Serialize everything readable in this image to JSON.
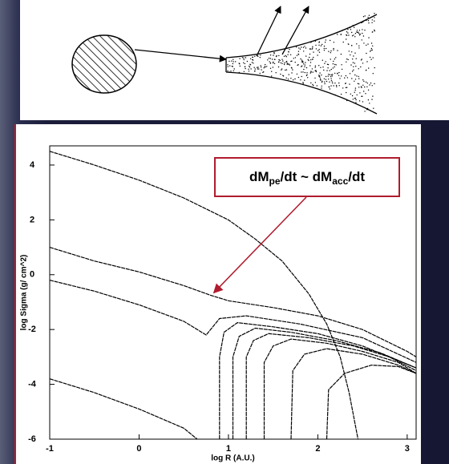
{
  "chart_data": {
    "type": "line",
    "x_label": "log R (A.U.)",
    "y_label": "log Sigma  (g/ cm^2)",
    "xlim": [
      -1,
      3.1
    ],
    "ylim": [
      -6,
      4.7
    ],
    "xticks": [
      -1,
      0,
      1,
      2,
      3
    ],
    "yticks": [
      -6,
      -4,
      -2,
      0,
      2,
      4
    ],
    "annotation": [
      "dM",
      "pe",
      "/dt ~ dM",
      "acc",
      "/dt"
    ],
    "annotation_point": [
      0.8,
      -0.75
    ],
    "series": [
      {
        "color": "#000000",
        "x": [
          -1,
          -0.5,
          0,
          0.5,
          1.0,
          1.3,
          1.6,
          1.9,
          2.1,
          2.25,
          2.35,
          2.45
        ],
        "values": [
          4.5,
          4.0,
          3.45,
          2.8,
          2.0,
          1.3,
          0.5,
          -0.7,
          -1.8,
          -3,
          -4.3,
          -6
        ]
      },
      {
        "color": "#000000",
        "x": [
          -1,
          -0.5,
          0,
          0.5,
          0.8,
          1.0,
          1.5,
          2,
          2.5,
          3.0,
          3.1
        ],
        "values": [
          1.0,
          0.5,
          0.1,
          -0.4,
          -0.75,
          -0.95,
          -1.2,
          -1.5,
          -2.0,
          -2.8,
          -3.0
        ]
      },
      {
        "color": "#000000",
        "x": [
          -1,
          -0.5,
          0,
          0.5,
          0.75,
          0.9,
          1.2,
          1.8,
          2.5,
          3.1
        ],
        "values": [
          -0.2,
          -0.6,
          -1.1,
          -1.7,
          -2.2,
          -1.6,
          -1.5,
          -1.8,
          -2.3,
          -3.2
        ]
      },
      {
        "color": "#000000",
        "x": [
          -1,
          -0.5,
          0,
          0.5,
          0.65
        ],
        "values": [
          -3.8,
          -4.3,
          -4.9,
          -5.6,
          -6
        ]
      },
      {
        "color": "#000000",
        "x": [
          0.9,
          0.9,
          0.95,
          1.1,
          1.5,
          2,
          2.5,
          3.1
        ],
        "values": [
          -6,
          -3,
          -2.1,
          -1.75,
          -1.9,
          -2.15,
          -2.6,
          -3.4
        ]
      },
      {
        "color": "#000000",
        "x": [
          1.05,
          1.05,
          1.12,
          1.3,
          1.7,
          2.2,
          2.7,
          3.1
        ],
        "values": [
          -6,
          -3,
          -2.25,
          -1.95,
          -2.1,
          -2.4,
          -2.85,
          -3.4
        ]
      },
      {
        "color": "#000000",
        "x": [
          1.2,
          1.2,
          1.28,
          1.45,
          1.9,
          2.4,
          2.8,
          3.1
        ],
        "values": [
          -6,
          -3,
          -2.4,
          -2.15,
          -2.3,
          -2.6,
          -3.0,
          -3.5
        ]
      },
      {
        "color": "#000000",
        "x": [
          1.4,
          1.4,
          1.5,
          1.7,
          2.1,
          2.5,
          2.9,
          3.1
        ],
        "values": [
          -6,
          -3.2,
          -2.6,
          -2.35,
          -2.5,
          -2.8,
          -3.2,
          -3.6
        ]
      },
      {
        "color": "#000000",
        "x": [
          1.7,
          1.72,
          1.85,
          2.1,
          2.5,
          2.9,
          3.1
        ],
        "values": [
          -6,
          -3.5,
          -2.9,
          -2.7,
          -2.9,
          -3.3,
          -3.6
        ]
      },
      {
        "color": "#000000",
        "x": [
          2.1,
          2.12,
          2.3,
          2.6,
          2.9,
          3.1
        ],
        "values": [
          -6,
          -4.2,
          -3.6,
          -3.3,
          -3.35,
          -3.6
        ]
      }
    ]
  }
}
